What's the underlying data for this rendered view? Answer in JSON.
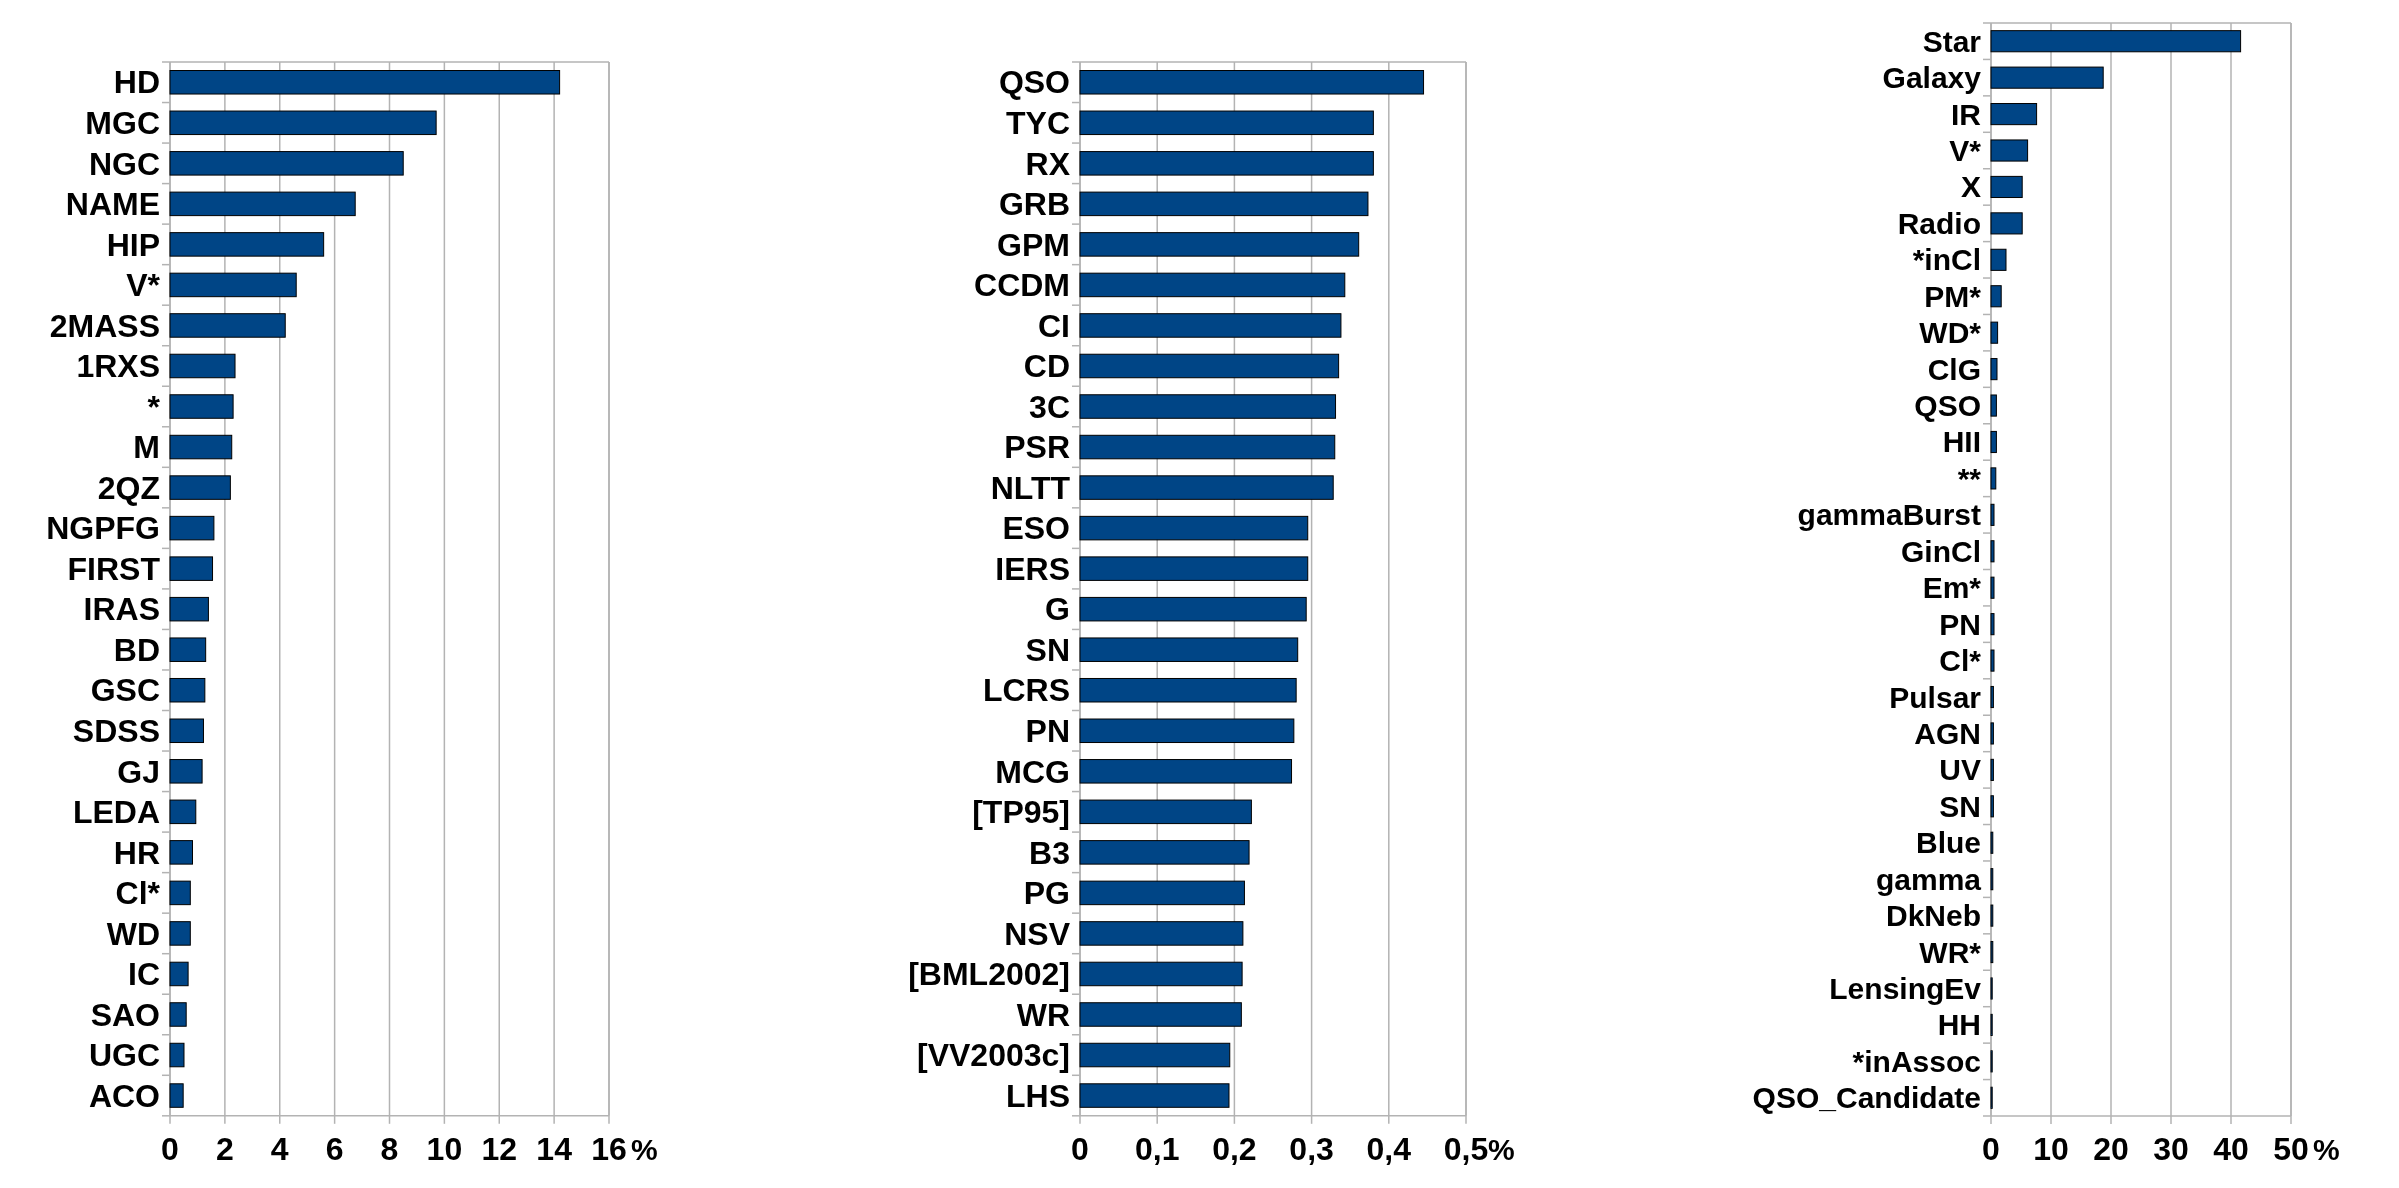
{
  "chart_data": [
    {
      "type": "bar",
      "orientation": "horizontal",
      "categories": [
        "HD",
        "MGC",
        "NGC",
        "NAME",
        "HIP",
        "V*",
        "2MASS",
        "1RXS",
        "*",
        "M",
        "2QZ",
        "NGPFG",
        "FIRST",
        "IRAS",
        "BD",
        "GSC",
        "SDSS",
        "GJ",
        "LEDA",
        "HR",
        "Cl*",
        "WD",
        "IC",
        "SAO",
        "UGC",
        "ACO"
      ],
      "values": [
        14.2,
        9.7,
        8.5,
        6.75,
        5.6,
        4.6,
        4.2,
        2.37,
        2.3,
        2.25,
        2.2,
        1.6,
        1.55,
        1.4,
        1.3,
        1.27,
        1.22,
        1.17,
        0.94,
        0.82,
        0.74,
        0.74,
        0.66,
        0.59,
        0.51,
        0.48
      ],
      "color": "#004586",
      "xlim": [
        0,
        16
      ],
      "xticks": [
        0,
        2,
        4,
        6,
        8,
        10,
        12,
        14,
        16
      ],
      "xlabel": "%",
      "grid": "x",
      "legend": false
    },
    {
      "type": "bar",
      "orientation": "horizontal",
      "categories": [
        "QSO",
        "TYC",
        "RX",
        "GRB",
        "GPM",
        "CCDM",
        "CI",
        "CD",
        "3C",
        "PSR",
        "NLTT",
        "ESO",
        "IERS",
        "G",
        "SN",
        "LCRS",
        "PN",
        "MCG",
        "[TP95]",
        "B3",
        "PG",
        "NSV",
        "[BML2002]",
        "WR",
        "[VV2003c]",
        "LHS"
      ],
      "values": [
        0.445,
        0.38,
        0.38,
        0.373,
        0.361,
        0.343,
        0.338,
        0.335,
        0.331,
        0.33,
        0.328,
        0.295,
        0.295,
        0.293,
        0.282,
        0.28,
        0.277,
        0.274,
        0.222,
        0.219,
        0.213,
        0.211,
        0.21,
        0.209,
        0.194,
        0.193
      ],
      "color": "#004586",
      "xlim": [
        0,
        0.5
      ],
      "xticks": [
        0,
        {
          "value": 0.1,
          "label": "0,1"
        },
        {
          "value": 0.2,
          "label": "0,2"
        },
        {
          "value": 0.3,
          "label": "0,3"
        },
        {
          "value": 0.4,
          "label": "0,4"
        },
        {
          "value": 0.5,
          "label": "0,5"
        }
      ],
      "xlabel": "%",
      "grid": "x",
      "legend": false
    },
    {
      "type": "bar",
      "orientation": "horizontal",
      "categories": [
        "Star",
        "Galaxy",
        "IR",
        "V*",
        "X",
        "Radio",
        "*inCl",
        "PM*",
        "WD*",
        "ClG",
        "QSO",
        "HII",
        "**",
        "gammaBurst",
        "GinCl",
        "Em*",
        "PN",
        "Cl*",
        "Pulsar",
        "AGN",
        "UV",
        "SN",
        "Blue",
        "gamma",
        "DkNeb",
        "WR*",
        "LensingEv",
        "HH",
        "*inAssoc",
        "QSO_Candidate"
      ],
      "values": [
        41.6,
        18.7,
        7.6,
        6.1,
        5.2,
        5.2,
        2.5,
        1.7,
        1.1,
        1.0,
        0.9,
        0.9,
        0.8,
        0.5,
        0.5,
        0.5,
        0.5,
        0.5,
        0.4,
        0.4,
        0.4,
        0.4,
        0.3,
        0.3,
        0.3,
        0.3,
        0.2,
        0.2,
        0.2,
        0.2
      ],
      "color": "#004586",
      "xlim": [
        0,
        50
      ],
      "xticks": [
        0,
        10,
        20,
        30,
        40,
        50
      ],
      "xlabel": "%",
      "grid": "x",
      "legend": false
    }
  ]
}
